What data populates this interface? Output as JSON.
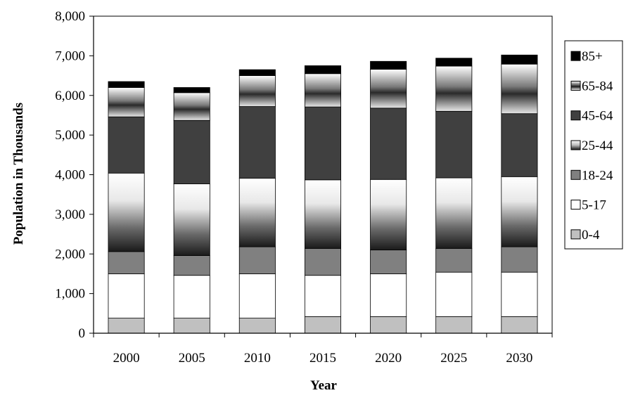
{
  "chart_data": {
    "type": "bar",
    "stacked": true,
    "categories": [
      "2000",
      "2005",
      "2010",
      "2015",
      "2020",
      "2025",
      "2030"
    ],
    "series": [
      {
        "name": "0-4",
        "color": "#c0c0c0",
        "fill": "solid",
        "values": [
          380,
          380,
          380,
          420,
          420,
          420,
          420
        ]
      },
      {
        "name": "5-17",
        "color": "#ffffff",
        "fill": "solid",
        "values": [
          1120,
          1080,
          1120,
          1040,
          1080,
          1120,
          1120
        ]
      },
      {
        "name": "18-24",
        "color": "#808080",
        "fill": "solid",
        "values": [
          560,
          500,
          680,
          680,
          600,
          600,
          640
        ]
      },
      {
        "name": "25-44",
        "color": "#1a1a1a",
        "fill": "gradient",
        "values": [
          1980,
          1810,
          1730,
          1730,
          1780,
          1780,
          1770
        ]
      },
      {
        "name": "45-64",
        "color": "#404040",
        "fill": "solid",
        "values": [
          1420,
          1600,
          1810,
          1840,
          1800,
          1680,
          1590
        ]
      },
      {
        "name": "65-84",
        "color": "#1a1a1a",
        "fill": "gradient",
        "values": [
          740,
          700,
          780,
          840,
          980,
          1140,
          1250
        ]
      },
      {
        "name": "85+",
        "color": "#000000",
        "fill": "solid",
        "values": [
          150,
          130,
          150,
          200,
          200,
          200,
          230
        ]
      }
    ],
    "xlabel": "Year",
    "ylabel": "Population in Thousands",
    "ylim": [
      0,
      8000
    ],
    "yticks": [
      0,
      1000,
      2000,
      3000,
      4000,
      5000,
      6000,
      7000,
      8000
    ],
    "ytick_labels": [
      "0",
      "1,000",
      "2,000",
      "3,000",
      "4,000",
      "5,000",
      "6,000",
      "7,000",
      "8,000"
    ],
    "legend_position": "right",
    "grid": false
  }
}
